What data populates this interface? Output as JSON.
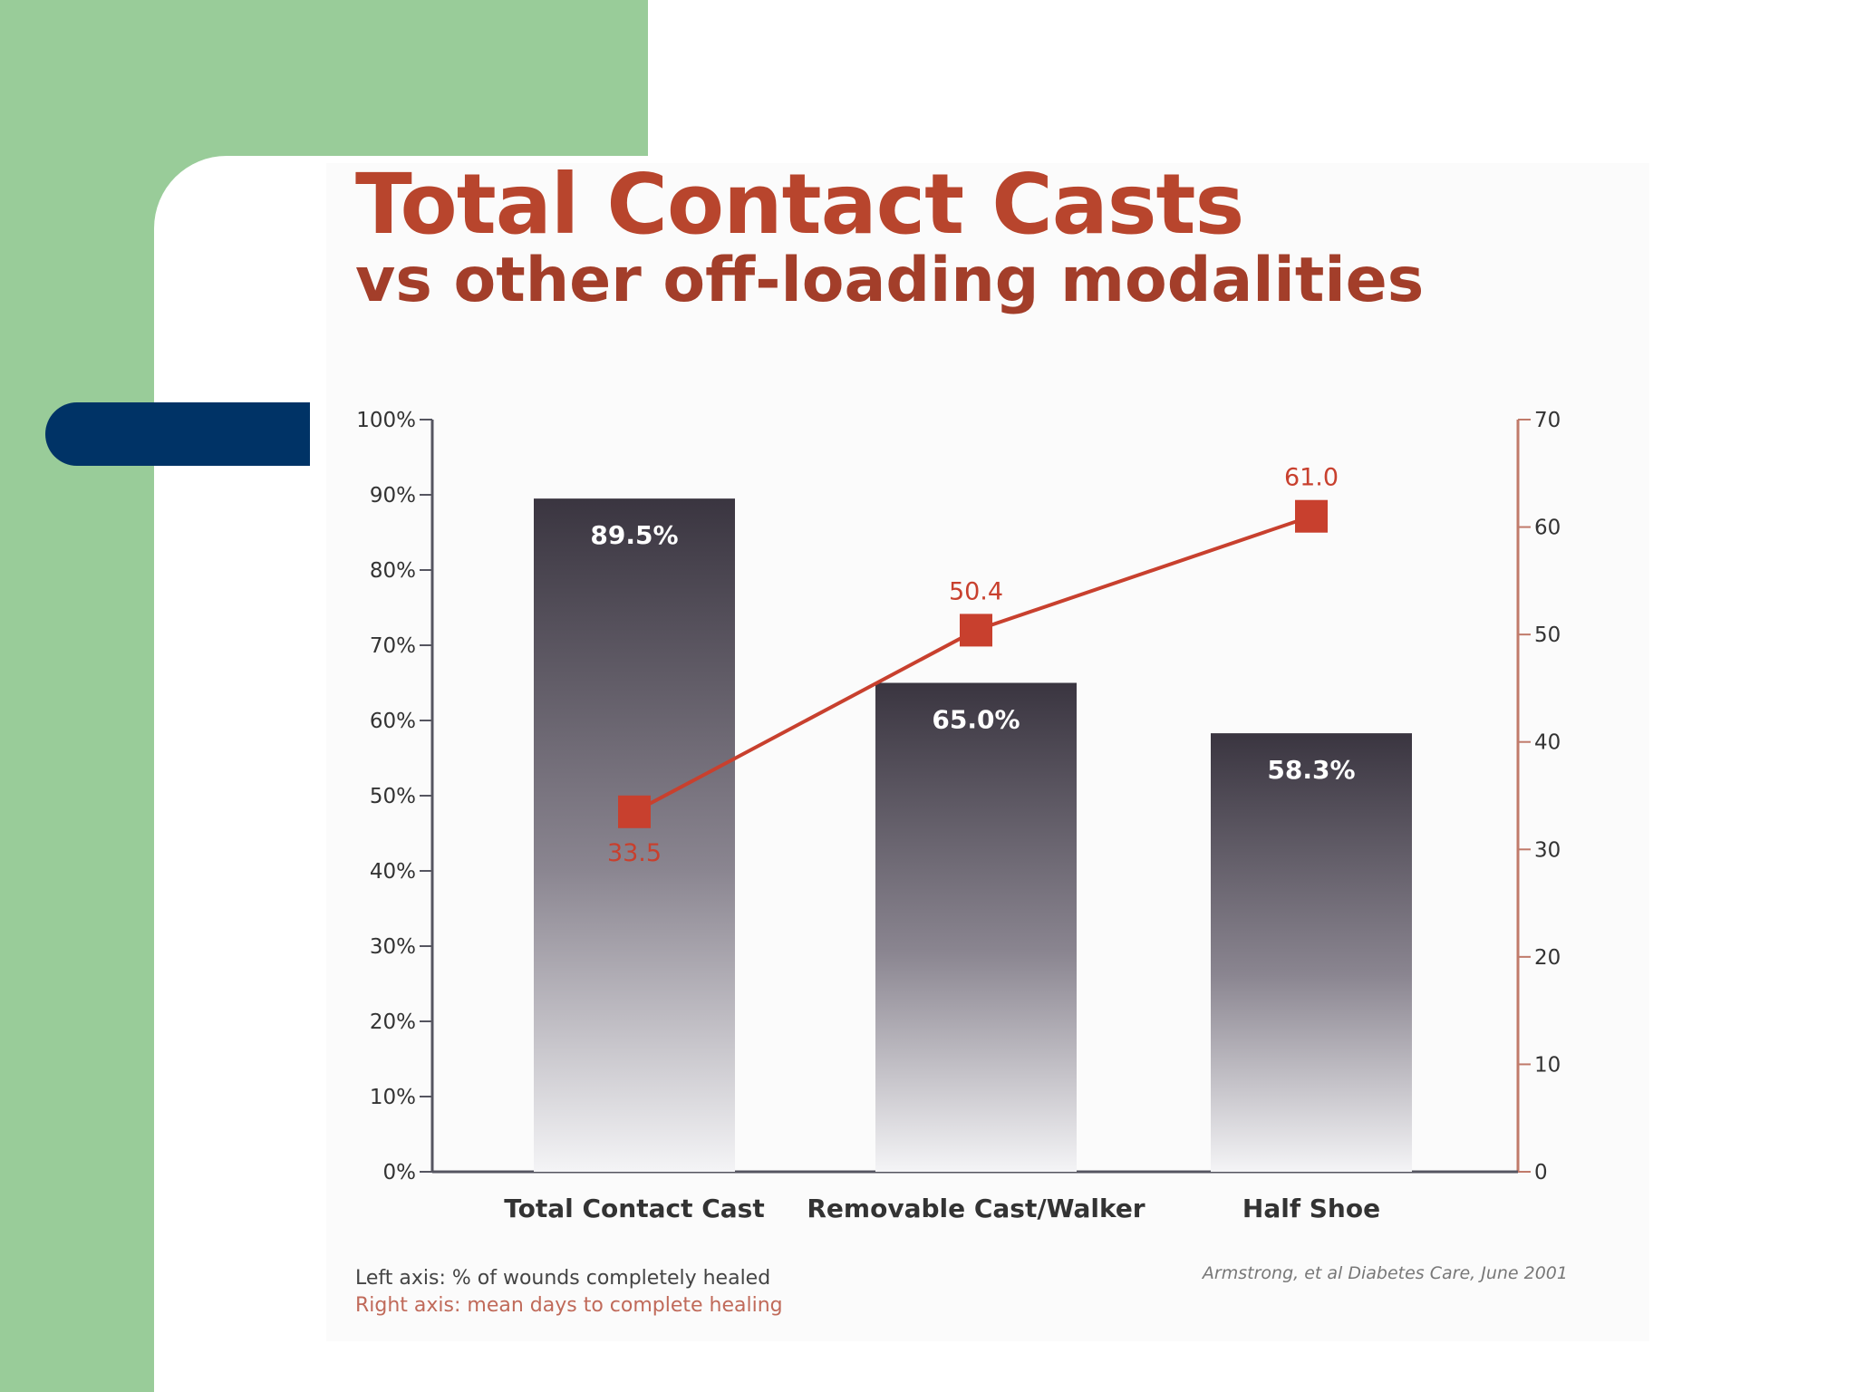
{
  "slide": {
    "colors": {
      "green": "#99cc99",
      "navy": "#003366",
      "white": "#ffffff"
    }
  },
  "chart_data": {
    "type": "bar",
    "title": "Total Contact Casts",
    "subtitle": "vs other off-loading modalities",
    "categories": [
      "Total Contact Cast",
      "Removable Cast/Walker",
      "Half Shoe"
    ],
    "series": [
      {
        "axis": "left",
        "type": "bar",
        "values": [
          89.5,
          65.0,
          58.3
        ],
        "value_labels": [
          "89.5%",
          "65.0%",
          "58.3%"
        ],
        "color": "#3a3540"
      },
      {
        "axis": "right",
        "type": "line",
        "values": [
          33.5,
          50.4,
          61.0
        ],
        "value_labels": [
          "33.5",
          "50.4",
          "61.0"
        ],
        "color": "#c8402e"
      }
    ],
    "left_axis": {
      "ylim": [
        0,
        100
      ],
      "ticks": [
        "0%",
        "10%",
        "20%",
        "30%",
        "40%",
        "50%",
        "60%",
        "70%",
        "80%",
        "90%",
        "100%"
      ]
    },
    "right_axis": {
      "ylim": [
        0,
        70
      ],
      "ticks": [
        "0",
        "10",
        "20",
        "30",
        "40",
        "50",
        "60",
        "70"
      ]
    },
    "grid": false,
    "footnotes": {
      "left_axis": "Left axis: % of wounds completely healed",
      "right_axis": "Right axis: mean days to complete healing"
    },
    "citation": "Armstrong, et al Diabetes Care, June 2001"
  }
}
